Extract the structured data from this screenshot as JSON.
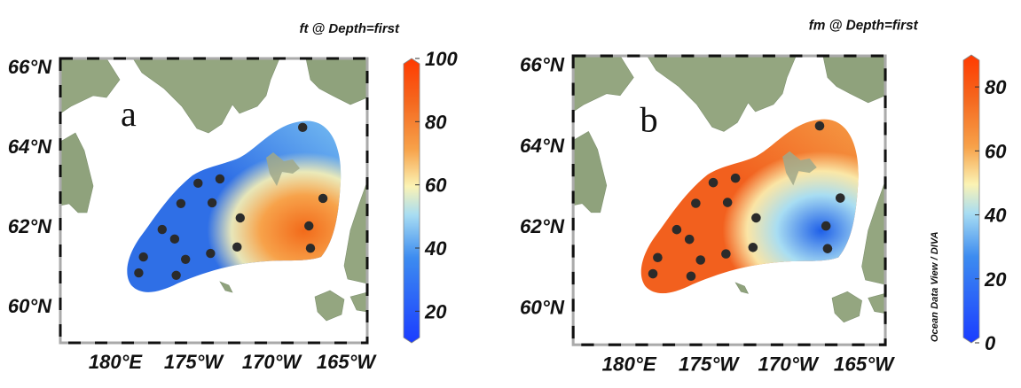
{
  "axes": {
    "lat_ticks": [
      {
        "lat": 66,
        "label": "66°N"
      },
      {
        "lat": 64,
        "label": "64°N"
      },
      {
        "lat": 62,
        "label": "62°N"
      },
      {
        "lat": 60,
        "label": "60°N"
      }
    ],
    "lon_ticks": [
      {
        "lon_w": 180,
        "label": "180°E"
      },
      {
        "lon_w": 175,
        "label": "175°W"
      },
      {
        "lon_w": 170,
        "label": "170°W"
      },
      {
        "lon_w": 165,
        "label": "165°W"
      }
    ]
  },
  "stations": [
    {
      "lon_w": 168.0,
      "lat": 64.47
    },
    {
      "lon_w": 166.7,
      "lat": 62.69
    },
    {
      "lon_w": 167.6,
      "lat": 62.0
    },
    {
      "lon_w": 167.5,
      "lat": 61.44
    },
    {
      "lon_w": 172.0,
      "lat": 62.2
    },
    {
      "lon_w": 172.2,
      "lat": 61.47
    },
    {
      "lon_w": 173.3,
      "lat": 63.18
    },
    {
      "lon_w": 174.7,
      "lat": 63.07
    },
    {
      "lon_w": 175.8,
      "lat": 62.56
    },
    {
      "lon_w": 173.8,
      "lat": 62.58
    },
    {
      "lon_w": 177.0,
      "lat": 61.91
    },
    {
      "lon_w": 176.2,
      "lat": 61.67
    },
    {
      "lon_w": 178.2,
      "lat": 61.22
    },
    {
      "lon_w": 178.5,
      "lat": 60.82
    },
    {
      "lon_w": 175.5,
      "lat": 61.16
    },
    {
      "lon_w": 173.9,
      "lat": 61.31
    },
    {
      "lon_w": 176.1,
      "lat": 60.76
    }
  ],
  "panels": [
    {
      "letter": "a",
      "title": "ft @ Depth=first",
      "credit": "Ocean Data View / DIVA",
      "range": [
        10,
        100
      ],
      "ticks": [
        {
          "v": 100,
          "label": "100"
        },
        {
          "v": 80,
          "label": "80"
        },
        {
          "v": 60,
          "label": "60"
        },
        {
          "v": 40,
          "label": "40"
        },
        {
          "v": 20,
          "label": "20"
        }
      ],
      "colors": {
        "low": "#1a3cff",
        "mid": "#a8ddf2",
        "pale": "#fbf3b4",
        "high": "#ff3a00",
        "field_base": "#2f6fe6",
        "hot": "#f26a1a"
      }
    },
    {
      "letter": "b",
      "title": "fm @ Depth=first",
      "credit": "Ocean Data View / DIVA",
      "range": [
        0,
        90
      ],
      "ticks": [
        {
          "v": 80,
          "label": "80"
        },
        {
          "v": 60,
          "label": "60"
        },
        {
          "v": 40,
          "label": "40"
        },
        {
          "v": 20,
          "label": "20"
        },
        {
          "v": 0,
          "label": "0"
        }
      ],
      "colors": {
        "low": "#1a3cff",
        "mid": "#a8ddf2",
        "pale": "#fbf3b4",
        "high": "#ff3a00",
        "field_base": "#f2601e",
        "hot": "#1e5fe8"
      }
    }
  ]
}
